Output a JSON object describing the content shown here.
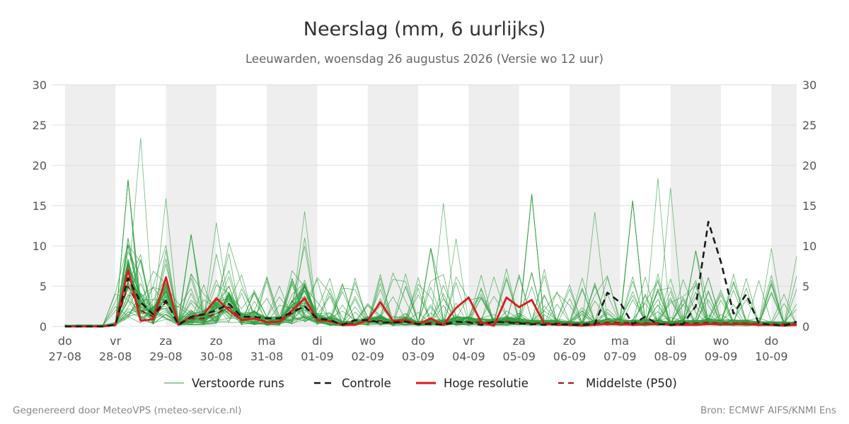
{
  "chart_data": {
    "type": "line",
    "title": "Neerslag (mm, 6 uurlijks)",
    "subtitle": "Leeuwarden, woensdag 26 augustus 2026 (Versie wo 12 uur)",
    "xlabel": "",
    "ylabel": "",
    "ylim": [
      0,
      30
    ],
    "yticks": [
      0,
      5,
      10,
      15,
      20,
      25,
      30
    ],
    "x_unit": "6-hour steps from 27-08 00 UTC",
    "x_range": [
      -1,
      58
    ],
    "day_labels": [
      {
        "weekday": "do",
        "date": "27-08"
      },
      {
        "weekday": "vr",
        "date": "28-08"
      },
      {
        "weekday": "za",
        "date": "29-08"
      },
      {
        "weekday": "zo",
        "date": "30-08"
      },
      {
        "weekday": "ma",
        "date": "31-08"
      },
      {
        "weekday": "di",
        "date": "01-09"
      },
      {
        "weekday": "wo",
        "date": "02-09"
      },
      {
        "weekday": "do",
        "date": "03-09"
      },
      {
        "weekday": "vr",
        "date": "04-09"
      },
      {
        "weekday": "za",
        "date": "05-09"
      },
      {
        "weekday": "zo",
        "date": "06-09"
      },
      {
        "weekday": "ma",
        "date": "07-09"
      },
      {
        "weekday": "di",
        "date": "08-09"
      },
      {
        "weekday": "wo",
        "date": "09-09"
      },
      {
        "weekday": "do",
        "date": "10-09"
      }
    ],
    "shaded_days": [
      0,
      2,
      4,
      6,
      8,
      10,
      12,
      14
    ],
    "grid": true,
    "legend_position": "bottom",
    "colors": {
      "ensemble": "#2e9e3e",
      "control": "#1a1a1a",
      "high_res": "#e0191c",
      "median": "#a01010",
      "day_band": "#eeeeee",
      "grid": "#dddddd"
    },
    "series": [
      {
        "key": "control",
        "name": "Controle",
        "style": "dashed",
        "values": [
          0,
          0,
          0,
          0,
          0.2,
          6,
          3,
          1.5,
          3.2,
          0.2,
          1.2,
          1.5,
          2,
          2.8,
          1.2,
          1.2,
          1,
          1,
          1.8,
          2.5,
          1,
          0.8,
          0.2,
          0.8,
          0.8,
          0.5,
          0.5,
          0.6,
          0.3,
          0.3,
          0.2,
          0.6,
          0.5,
          0.2,
          0.6,
          0.5,
          0.4,
          0.3,
          0.2,
          0.3,
          0.2,
          0.2,
          0.3,
          4.2,
          3,
          0.3,
          1.2,
          0.3,
          0.2,
          0.3,
          2.5,
          13,
          8,
          1.6,
          4,
          0.4,
          0.2,
          0.1,
          0.6
        ]
      },
      {
        "key": "high_res",
        "name": "Hoge resolutie",
        "style": "solid",
        "values": [
          0,
          0,
          0,
          0,
          0.2,
          7,
          0.7,
          0.9,
          6.1,
          0.2,
          1.2,
          1.5,
          3.5,
          2,
          0.8,
          1,
          0.5,
          0.6,
          2,
          3.5,
          0.8,
          0.7,
          0.2,
          0.2,
          0.8,
          3,
          0.7,
          0.8,
          0.3,
          1,
          0.2,
          2.3,
          3.6,
          0.5,
          0.1,
          3.6,
          2.4,
          3.3,
          0.3,
          0.2,
          0.2,
          0.1,
          0.2,
          0.3,
          0.3,
          0.2,
          0.3,
          0.3,
          0.2,
          0.2,
          0.2,
          0.3,
          0.3,
          0.3,
          0.3,
          0.2,
          0.2,
          0.1,
          0.2
        ]
      },
      {
        "key": "median",
        "name": "Middelste (P50)",
        "style": "dashed",
        "values": [
          0,
          0,
          0,
          0,
          0.2,
          5,
          2,
          1.2,
          3,
          0.4,
          1,
          1,
          1.6,
          2.4,
          0.8,
          1,
          0.6,
          0.6,
          1.6,
          2.6,
          0.8,
          0.6,
          0.3,
          0.4,
          0.6,
          0.7,
          0.4,
          0.6,
          0.3,
          0.5,
          0.4,
          0.6,
          0.6,
          0.5,
          0.5,
          0.6,
          0.5,
          0.4,
          0.4,
          0.4,
          0.3,
          0.3,
          0.4,
          0.5,
          0.5,
          0.4,
          0.4,
          0.4,
          0.3,
          0.4,
          0.4,
          0.5,
          0.4,
          0.4,
          0.4,
          0.3,
          0.3,
          0.3,
          0.3
        ]
      },
      {
        "key": "ensemble",
        "name": "Verstoorde runs",
        "style": "thin",
        "member_count": 50,
        "peaks": [
          {
            "x": 5,
            "value": 18.2
          },
          {
            "x": 6,
            "value": 23.4
          },
          {
            "x": 8,
            "value": 15.9
          },
          {
            "x": 10,
            "value": 11.4
          },
          {
            "x": 12,
            "value": 12.9
          },
          {
            "x": 19,
            "value": 14.3
          },
          {
            "x": 29,
            "value": 9.7
          },
          {
            "x": 30,
            "value": 15.3
          },
          {
            "x": 31,
            "value": 10.9
          },
          {
            "x": 37,
            "value": 16.4
          },
          {
            "x": 38,
            "value": 7.1
          },
          {
            "x": 42,
            "value": 14.2
          },
          {
            "x": 45,
            "value": 15.6
          },
          {
            "x": 47,
            "value": 18.4
          },
          {
            "x": 48,
            "value": 17.2
          },
          {
            "x": 50,
            "value": 9.4
          },
          {
            "x": 56,
            "value": 9.7
          },
          {
            "x": 58,
            "value": 8.7
          }
        ]
      }
    ],
    "legend": [
      {
        "key": "ensemble",
        "label": "Verstoorde runs"
      },
      {
        "key": "control",
        "label": "Controle"
      },
      {
        "key": "high_res",
        "label": "Hoge resolutie"
      },
      {
        "key": "median",
        "label": "Middelste (P50)"
      }
    ]
  },
  "footer": {
    "left": "Gegenereerd door MeteoVPS (meteo-service.nl)",
    "right": "Bron: ECMWF AIFS/KNMI Ens"
  }
}
